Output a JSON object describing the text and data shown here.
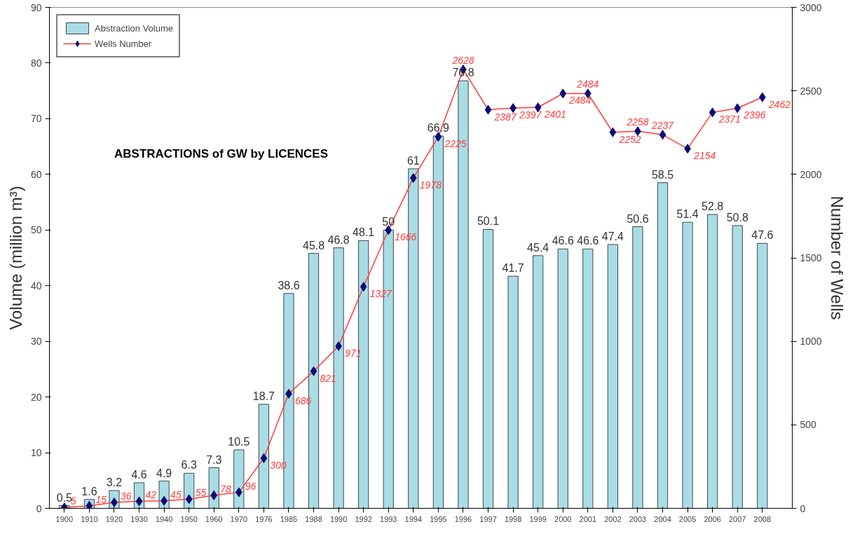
{
  "chart_data": {
    "type": "bar",
    "title": "ABSTRACTIONS of GW by LICENCES",
    "ylabel": "Volume (million m³)",
    "y2label": "Number of Wells",
    "categories": [
      "1900",
      "1910",
      "1920",
      "1930",
      "1940",
      "1950",
      "1960",
      "1970",
      "1976",
      "1985",
      "1988",
      "1990",
      "1992",
      "1993",
      "1994",
      "1995",
      "1996",
      "1997",
      "1998",
      "1999",
      "2000",
      "2001",
      "2002",
      "2003",
      "2004",
      "2005",
      "2006",
      "2007",
      "2008"
    ],
    "series": [
      {
        "name": "Abstraction Volume",
        "color": "#a9dde6",
        "values": [
          0.5,
          1.6,
          3.2,
          4.6,
          4.9,
          6.3,
          7.3,
          10.5,
          18.7,
          38.6,
          45.8,
          46.8,
          48.1,
          50,
          61,
          66.9,
          76.8,
          50.1,
          41.7,
          45.4,
          46.6,
          46.6,
          47.4,
          50.6,
          58.5,
          51.4,
          52.8,
          50.8,
          47.6
        ]
      },
      {
        "name": "Wells Number",
        "type": "line",
        "axis": "y2",
        "color": "#ff3b3b",
        "marker": "diamond",
        "values": [
          5,
          15,
          36,
          42,
          45,
          55,
          78,
          96,
          300,
          686,
          821,
          971,
          1327,
          1666,
          1978,
          2225,
          2628,
          2387,
          2397,
          2401,
          2484,
          2484,
          2252,
          2258,
          2237,
          2154,
          2371,
          2396,
          2462
        ]
      }
    ],
    "ylim": [
      0,
      90
    ],
    "yticks": [
      0,
      10,
      20,
      30,
      40,
      50,
      60,
      70,
      80,
      90
    ],
    "y2lim": [
      0,
      3000
    ],
    "y2ticks": [
      0,
      500,
      1000,
      1500,
      2000,
      2500,
      3000
    ],
    "data_labels": true,
    "grid": false,
    "legend": "top left"
  }
}
